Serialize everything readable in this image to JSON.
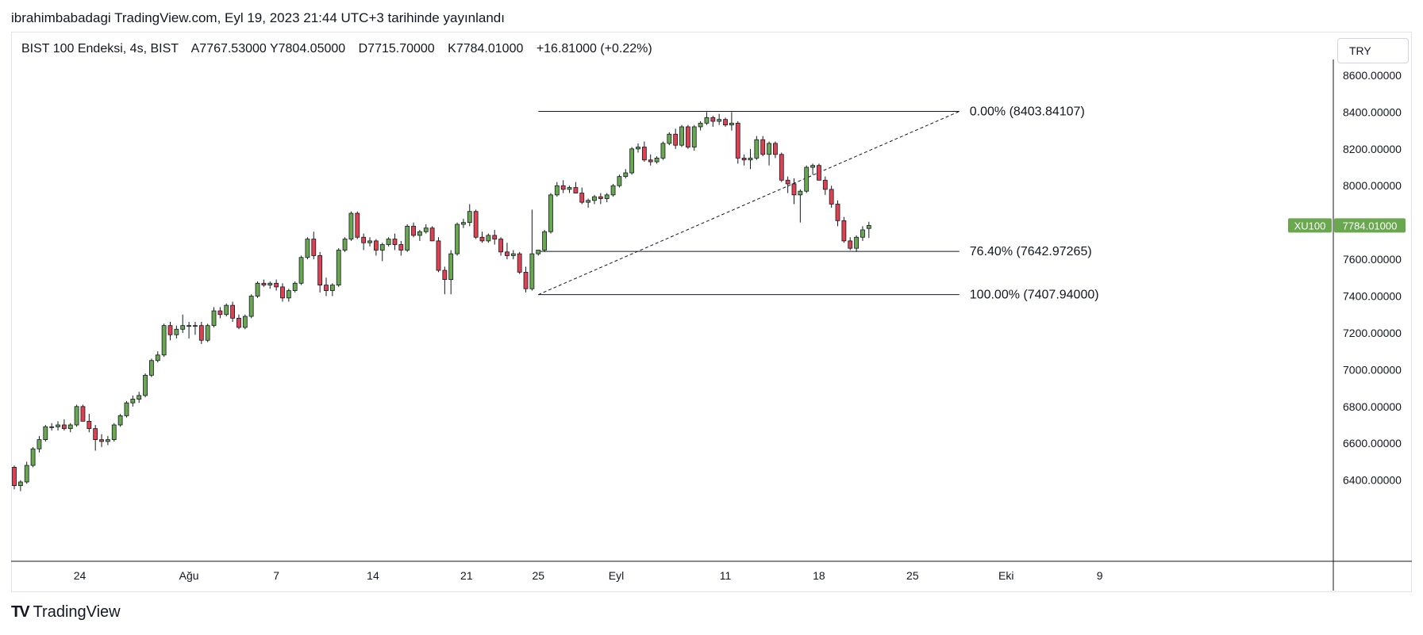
{
  "header": {
    "publish_line": "ibrahimbabadagi TradingView.com, Eyl 19, 2023 21:44 UTC+3 tarihinde yayınlandı"
  },
  "legend": {
    "symbol": "BIST 100 Endeksi, 4s, BIST",
    "open": "A7767.53000",
    "high": "Y7804.05000",
    "low": "D7715.70000",
    "close": "K7784.01000",
    "change": "+16.81000 (+0.22%)"
  },
  "toolbar": {
    "currency": "TRY"
  },
  "footer": {
    "brand": "TradingView"
  },
  "colors": {
    "up": "#4caf50",
    "up_fill": "#6aa84f",
    "down": "#e04150",
    "last_price_badge": "#6aa84f",
    "grid_line": "#e0e3eb",
    "fib_line": "#131722"
  },
  "chart_data": {
    "type": "candlestick",
    "title": "",
    "xlabel": "",
    "ylabel": "",
    "ylim": [
      6330,
      8760
    ],
    "grid": false,
    "y_ticks": [
      "8600.00000",
      "8400.00000",
      "8200.00000",
      "8000.00000",
      "7800.00000",
      "7600.00000",
      "7400.00000",
      "7200.00000",
      "7000.00000",
      "6800.00000",
      "6600.00000",
      "6400.00000"
    ],
    "x_ticks": [
      {
        "label": "24",
        "bar": 10.5
      },
      {
        "label": "Ağu",
        "bar": 28
      },
      {
        "label": "7",
        "bar": 42
      },
      {
        "label": "14",
        "bar": 57.5
      },
      {
        "label": "21",
        "bar": 72.5
      },
      {
        "label": "25",
        "bar": 84
      },
      {
        "label": "Eyl",
        "bar": 96.5
      },
      {
        "label": "11",
        "bar": 114
      },
      {
        "label": "18",
        "bar": 129
      },
      {
        "label": "25",
        "bar": 144
      },
      {
        "label": "Eki",
        "bar": 159
      },
      {
        "label": "9",
        "bar": 174
      }
    ],
    "last_price": {
      "symbol": "XU100",
      "value": "7784.01000",
      "price": 7784.01
    },
    "fibonacci": {
      "start_bar": 84,
      "end_bar": 151.5,
      "levels": [
        {
          "label": "0.00% (8403.84107)",
          "price": 8403.84107
        },
        {
          "label": "76.40% (7642.97265)",
          "price": 7642.97265
        },
        {
          "label": "100.00% (7407.94000)",
          "price": 7407.94
        }
      ],
      "trend_line": {
        "from_bar": 84,
        "from_price": 7407.94,
        "to_bar": 151.5,
        "to_price": 8403.84107
      }
    },
    "candles": [
      [
        6470,
        6480,
        6350,
        6370
      ],
      [
        6370,
        6400,
        6340,
        6390
      ],
      [
        6390,
        6500,
        6380,
        6480
      ],
      [
        6480,
        6580,
        6470,
        6570
      ],
      [
        6570,
        6640,
        6550,
        6620
      ],
      [
        6620,
        6700,
        6610,
        6690
      ],
      [
        6690,
        6710,
        6670,
        6690
      ],
      [
        6690,
        6720,
        6670,
        6700
      ],
      [
        6700,
        6730,
        6670,
        6680
      ],
      [
        6680,
        6710,
        6660,
        6700
      ],
      [
        6700,
        6810,
        6690,
        6800
      ],
      [
        6800,
        6810,
        6720,
        6720
      ],
      [
        6720,
        6760,
        6660,
        6680
      ],
      [
        6680,
        6700,
        6560,
        6620
      ],
      [
        6620,
        6650,
        6580,
        6610
      ],
      [
        6610,
        6640,
        6590,
        6620
      ],
      [
        6620,
        6710,
        6610,
        6700
      ],
      [
        6700,
        6760,
        6690,
        6750
      ],
      [
        6750,
        6830,
        6740,
        6820
      ],
      [
        6820,
        6860,
        6800,
        6840
      ],
      [
        6840,
        6880,
        6820,
        6860
      ],
      [
        6860,
        6980,
        6850,
        6970
      ],
      [
        6970,
        7060,
        6960,
        7050
      ],
      [
        7050,
        7100,
        7040,
        7080
      ],
      [
        7080,
        7250,
        7070,
        7240
      ],
      [
        7240,
        7260,
        7160,
        7190
      ],
      [
        7190,
        7240,
        7170,
        7220
      ],
      [
        7220,
        7300,
        7200,
        7240
      ],
      [
        7240,
        7260,
        7170,
        7240
      ],
      [
        7240,
        7260,
        7190,
        7240
      ],
      [
        7240,
        7260,
        7140,
        7160
      ],
      [
        7160,
        7250,
        7150,
        7240
      ],
      [
        7240,
        7340,
        7230,
        7320
      ],
      [
        7320,
        7340,
        7280,
        7300
      ],
      [
        7300,
        7360,
        7290,
        7350
      ],
      [
        7350,
        7370,
        7260,
        7280
      ],
      [
        7280,
        7300,
        7220,
        7230
      ],
      [
        7230,
        7300,
        7220,
        7290
      ],
      [
        7290,
        7410,
        7280,
        7400
      ],
      [
        7400,
        7480,
        7390,
        7470
      ],
      [
        7470,
        7490,
        7450,
        7460
      ],
      [
        7460,
        7480,
        7440,
        7470
      ],
      [
        7470,
        7490,
        7430,
        7450
      ],
      [
        7450,
        7470,
        7370,
        7390
      ],
      [
        7390,
        7440,
        7370,
        7430
      ],
      [
        7430,
        7480,
        7420,
        7470
      ],
      [
        7470,
        7620,
        7460,
        7610
      ],
      [
        7610,
        7720,
        7600,
        7710
      ],
      [
        7710,
        7750,
        7600,
        7620
      ],
      [
        7620,
        7640,
        7420,
        7460
      ],
      [
        7460,
        7500,
        7400,
        7430
      ],
      [
        7430,
        7470,
        7400,
        7460
      ],
      [
        7460,
        7660,
        7450,
        7650
      ],
      [
        7650,
        7720,
        7640,
        7710
      ],
      [
        7710,
        7860,
        7700,
        7850
      ],
      [
        7850,
        7860,
        7710,
        7720
      ],
      [
        7720,
        7740,
        7650,
        7690
      ],
      [
        7690,
        7720,
        7670,
        7700
      ],
      [
        7700,
        7710,
        7620,
        7650
      ],
      [
        7650,
        7690,
        7590,
        7680
      ],
      [
        7680,
        7720,
        7670,
        7710
      ],
      [
        7710,
        7740,
        7650,
        7680
      ],
      [
        7680,
        7700,
        7620,
        7650
      ],
      [
        7650,
        7790,
        7640,
        7780
      ],
      [
        7780,
        7800,
        7720,
        7730
      ],
      [
        7730,
        7760,
        7700,
        7750
      ],
      [
        7750,
        7790,
        7740,
        7770
      ],
      [
        7770,
        7780,
        7700,
        7700
      ],
      [
        7700,
        7720,
        7530,
        7540
      ],
      [
        7540,
        7560,
        7410,
        7490
      ],
      [
        7490,
        7650,
        7410,
        7630
      ],
      [
        7630,
        7800,
        7620,
        7790
      ],
      [
        7790,
        7820,
        7770,
        7800
      ],
      [
        7800,
        7900,
        7780,
        7860
      ],
      [
        7860,
        7870,
        7710,
        7720
      ],
      [
        7720,
        7750,
        7690,
        7700
      ],
      [
        7700,
        7740,
        7690,
        7730
      ],
      [
        7730,
        7760,
        7680,
        7710
      ],
      [
        7710,
        7720,
        7620,
        7640
      ],
      [
        7640,
        7690,
        7600,
        7620
      ],
      [
        7620,
        7650,
        7600,
        7630
      ],
      [
        7630,
        7640,
        7520,
        7530
      ],
      [
        7530,
        7560,
        7420,
        7440
      ],
      [
        7440,
        7870,
        7430,
        7630
      ],
      [
        7630,
        7640,
        7620,
        7650
      ],
      [
        7650,
        7760,
        7640,
        7750
      ],
      [
        7750,
        7960,
        7740,
        7950
      ],
      [
        7950,
        8020,
        7940,
        8000
      ],
      [
        8000,
        8030,
        7960,
        7980
      ],
      [
        7980,
        8000,
        7960,
        7990
      ],
      [
        7990,
        8020,
        7960,
        7960
      ],
      [
        7960,
        7990,
        7900,
        7910
      ],
      [
        7910,
        7930,
        7880,
        7920
      ],
      [
        7920,
        7950,
        7900,
        7940
      ],
      [
        7940,
        7960,
        7900,
        7930
      ],
      [
        7930,
        7960,
        7910,
        7950
      ],
      [
        7950,
        8010,
        7940,
        8000
      ],
      [
        8000,
        8060,
        7990,
        8050
      ],
      [
        8050,
        8090,
        8040,
        8070
      ],
      [
        8070,
        8210,
        8060,
        8200
      ],
      [
        8200,
        8230,
        8180,
        8210
      ],
      [
        8210,
        8240,
        8130,
        8140
      ],
      [
        8140,
        8170,
        8110,
        8130
      ],
      [
        8130,
        8160,
        8120,
        8150
      ],
      [
        8150,
        8240,
        8140,
        8230
      ],
      [
        8230,
        8290,
        8220,
        8280
      ],
      [
        8280,
        8310,
        8200,
        8220
      ],
      [
        8220,
        8330,
        8210,
        8320
      ],
      [
        8320,
        8330,
        8200,
        8210
      ],
      [
        8210,
        8330,
        8190,
        8320
      ],
      [
        8320,
        8350,
        8300,
        8340
      ],
      [
        8340,
        8400,
        8330,
        8370
      ],
      [
        8370,
        8380,
        8320,
        8350
      ],
      [
        8350,
        8390,
        8330,
        8360
      ],
      [
        8360,
        8370,
        8320,
        8330
      ],
      [
        8330,
        8400,
        8300,
        8340
      ],
      [
        8340,
        8350,
        8120,
        8150
      ],
      [
        8150,
        8170,
        8110,
        8140
      ],
      [
        8140,
        8200,
        8090,
        8150
      ],
      [
        8150,
        8270,
        8140,
        8250
      ],
      [
        8250,
        8270,
        8160,
        8170
      ],
      [
        8170,
        8240,
        8110,
        8230
      ],
      [
        8230,
        8240,
        8150,
        8170
      ],
      [
        8170,
        8180,
        8020,
        8030
      ],
      [
        8030,
        8050,
        7960,
        8010
      ],
      [
        8010,
        8040,
        7900,
        7950
      ],
      [
        7950,
        7980,
        7800,
        7970
      ],
      [
        7970,
        8110,
        7960,
        8100
      ],
      [
        8100,
        8120,
        8060,
        8110
      ],
      [
        8110,
        8120,
        8030,
        8030
      ],
      [
        8030,
        8050,
        7950,
        7980
      ],
      [
        7980,
        8000,
        7880,
        7900
      ],
      [
        7900,
        7920,
        7780,
        7810
      ],
      [
        7810,
        7830,
        7690,
        7700
      ],
      [
        7700,
        7720,
        7650,
        7660
      ],
      [
        7660,
        7730,
        7640,
        7720
      ],
      [
        7720,
        7780,
        7700,
        7760
      ],
      [
        7767.53,
        7804.05,
        7715.7,
        7784.01
      ]
    ]
  }
}
